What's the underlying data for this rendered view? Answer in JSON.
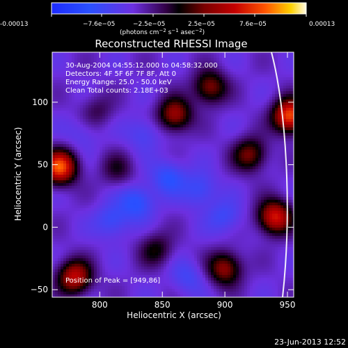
{
  "colorbar": {
    "ticks": [
      "-0.00013",
      "−7.6e−05",
      "−2.5e−05",
      "2.5e−05",
      "7.6e−05",
      "0.00013"
    ],
    "unit_prefix": "(photons cm",
    "unit_exp1": "−2",
    "unit_s": " s",
    "unit_exp2": "−1",
    "unit_asec": " asec",
    "unit_exp3": "−2",
    "unit_suffix": ")"
  },
  "chart_data": {
    "type": "heatmap",
    "title": "Reconstructed RHESSI Image",
    "xlabel": "Heliocentric X (arcsec)",
    "ylabel": "Heliocentric Y (arcsec)",
    "xlim": [
      762,
      955
    ],
    "ylim": [
      -56,
      140
    ],
    "xticks": [
      800,
      850,
      900,
      950
    ],
    "yticks": [
      -50,
      0,
      50,
      100
    ],
    "x_tick_labels": [
      "800",
      "850",
      "900",
      "950"
    ],
    "y_tick_labels": [
      "−50",
      "0",
      "50",
      "100"
    ],
    "color_range": [
      -0.00013,
      0.00013
    ],
    "limb_visible": true,
    "annotations": [
      "30-Aug-2004 04:55:12.000 to 04:58:32.000",
      "Detectors: 4F 5F 6F 7F 8F, Att 0",
      "Energy Range: 25.0 - 50.0 keV",
      "Clean    Total counts: 2.18E+03"
    ],
    "peak_label": "Position of Peak = [949,86]",
    "blobs": [
      {
        "x": 768,
        "y": 48,
        "v": 0.00013
      },
      {
        "x": 952,
        "y": 89,
        "v": 0.00013
      },
      {
        "x": 940,
        "y": 8,
        "v": 0.00011
      },
      {
        "x": 780,
        "y": -40,
        "v": 0.0001
      },
      {
        "x": 860,
        "y": 90,
        "v": 8.5e-05
      },
      {
        "x": 888,
        "y": 112,
        "v": 7.5e-05
      },
      {
        "x": 920,
        "y": 58,
        "v": 7e-05
      },
      {
        "x": 900,
        "y": -33,
        "v": 8e-05
      },
      {
        "x": 845,
        "y": -18,
        "v": 4.5e-05
      },
      {
        "x": 814,
        "y": 46,
        "v": 3.5e-05
      },
      {
        "x": 798,
        "y": 93,
        "v": 3e-05
      },
      {
        "x": 855,
        "y": 40,
        "v": -4.5e-05
      },
      {
        "x": 830,
        "y": 20,
        "v": -5e-05
      },
      {
        "x": 880,
        "y": 30,
        "v": -4e-05
      },
      {
        "x": 810,
        "y": 5,
        "v": -4e-05
      },
      {
        "x": 870,
        "y": -40,
        "v": -3e-05
      },
      {
        "x": 900,
        "y": 8,
        "v": -3.5e-05
      },
      {
        "x": 835,
        "y": 75,
        "v": -3e-05
      },
      {
        "x": 786,
        "y": 75,
        "v": -2e-05
      }
    ]
  },
  "footer": {
    "timestamp": "23-Jun-2013 12:52"
  }
}
